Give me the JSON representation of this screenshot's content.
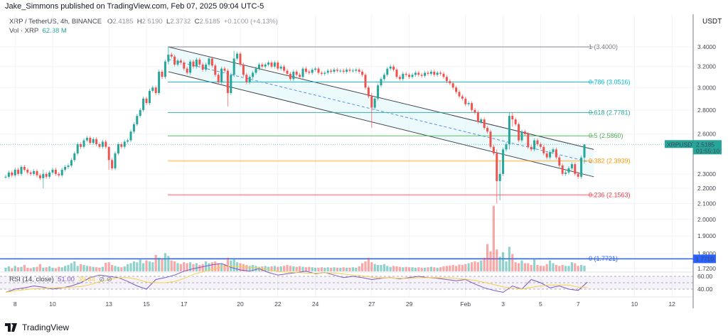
{
  "header": {
    "publisher": "Jake_Simmons published on TradingView.com, Feb 07, 2025 09:04 UTC-5",
    "symbol": "XRP / TetherUS, 4h, BINANCE",
    "o_label": "O",
    "o": "2.4185",
    "h_label": "H",
    "h": "2.5190",
    "l_label": "L",
    "l": "2.3732",
    "c_label": "C",
    "c": "2.5185",
    "change": "+0.1000 (+4.13%)",
    "vol_label": "Vol · XRP",
    "vol": "62.38 M",
    "currency": "USDT"
  },
  "rsi_legend": {
    "label": "RSI (14, close)",
    "value": "51.00",
    "ma_value": "39.34"
  },
  "footer": {
    "brand": "TradingView"
  },
  "colors": {
    "up": "#26a69a",
    "down": "#ef5350",
    "channel_fill": "#e0f7fa",
    "blue_line": "#2962ff",
    "rsi": "#7e57c2",
    "rsi_ma": "#f7d046"
  },
  "chart_data": {
    "type": "candlestick",
    "interval": "4h",
    "scale": "log",
    "grid": true,
    "price_ticks": [
      "3.4000",
      "3.2000",
      "3.0000",
      "2.8000",
      "2.6000",
      "2.3000",
      "2.2000",
      "2.1000",
      "2.0000",
      "1.9000",
      "1.8000",
      "1.7200"
    ],
    "time_ticks": [
      {
        "label": "8",
        "date": "2025-01-08"
      },
      {
        "label": "10",
        "date": "2025-01-10"
      },
      {
        "label": "13",
        "date": "2025-01-13"
      },
      {
        "label": "15",
        "date": "2025-01-15"
      },
      {
        "label": "17",
        "date": "2025-01-17"
      },
      {
        "label": "20",
        "date": "2025-01-20"
      },
      {
        "label": "22",
        "date": "2025-01-22"
      },
      {
        "label": "24",
        "date": "2025-01-24"
      },
      {
        "label": "27",
        "date": "2025-01-27"
      },
      {
        "label": "29",
        "date": "2025-01-29"
      },
      {
        "label": "Feb",
        "date": "2025-02-01"
      },
      {
        "label": "3",
        "date": "2025-02-03"
      },
      {
        "label": "5",
        "date": "2025-02-05"
      },
      {
        "label": "7",
        "date": "2025-02-07"
      },
      {
        "label": "10",
        "date": "2025-02-10"
      },
      {
        "label": "12",
        "date": "2025-02-12"
      }
    ],
    "closes": [
      2.28,
      2.31,
      2.29,
      2.33,
      2.3,
      2.35,
      2.33,
      2.31,
      2.3,
      2.32,
      2.29,
      2.27,
      2.3,
      2.28,
      2.31,
      2.33,
      2.3,
      2.29,
      2.33,
      2.35,
      2.36,
      2.4,
      2.45,
      2.52,
      2.5,
      2.55,
      2.57,
      2.53,
      2.56,
      2.52,
      2.5,
      2.54,
      2.5,
      2.4,
      2.34,
      2.45,
      2.52,
      2.5,
      2.54,
      2.55,
      2.62,
      2.68,
      2.75,
      2.8,
      2.9,
      2.86,
      2.97,
      3.0,
      2.95,
      3.15,
      3.1,
      3.25,
      3.32,
      3.3,
      3.22,
      3.26,
      3.24,
      3.18,
      3.14,
      3.25,
      3.2,
      3.27,
      3.22,
      3.17,
      3.22,
      3.28,
      3.21,
      3.12,
      3.05,
      3.18,
      3.16,
      2.95,
      3.12,
      3.28,
      3.33,
      3.22,
      3.12,
      3.05,
      3.1,
      3.14,
      3.18,
      3.22,
      3.2,
      3.22,
      3.24,
      3.2,
      3.24,
      3.18,
      3.2,
      3.16,
      3.13,
      3.08,
      3.15,
      3.12,
      3.1,
      3.18,
      3.15,
      3.14,
      3.17,
      3.18,
      3.14,
      3.13,
      3.14,
      3.16,
      3.15,
      3.17,
      3.16,
      3.16,
      3.15,
      3.17,
      3.16,
      3.16,
      3.17,
      3.15,
      3.12,
      3.0,
      2.92,
      2.82,
      2.9,
      3.02,
      3.08,
      3.12,
      3.18,
      3.2,
      3.17,
      3.1,
      3.08,
      3.13,
      3.12,
      3.1,
      3.12,
      3.14,
      3.12,
      3.11,
      3.14,
      3.13,
      3.15,
      3.12,
      3.14,
      3.13,
      3.1,
      3.06,
      3.04,
      3.0,
      2.96,
      2.92,
      2.9,
      2.85,
      2.86,
      2.8,
      2.78,
      2.7,
      2.72,
      2.65,
      2.62,
      2.5,
      2.45,
      2.25,
      2.3,
      2.48,
      2.52,
      2.75,
      2.72,
      2.68,
      2.55,
      2.62,
      2.6,
      2.5,
      2.48,
      2.55,
      2.52,
      2.5,
      2.45,
      2.42,
      2.46,
      2.48,
      2.42,
      2.36,
      2.3,
      2.31,
      2.34,
      2.37,
      2.3,
      2.28,
      2.4185,
      2.5185
    ],
    "wicks": {
      "12": [
        2.33,
        2.2
      ],
      "33": [
        2.5,
        2.33
      ],
      "52": [
        3.4,
        3.22
      ],
      "71": [
        3.18,
        2.83
      ],
      "73": [
        3.36,
        3.1
      ],
      "117": [
        2.95,
        2.65
      ],
      "157": [
        2.48,
        2.1
      ],
      "158": [
        2.4,
        2.12
      ],
      "161": [
        2.78,
        2.48
      ],
      "162": [
        2.78,
        2.66
      ],
      "185": [
        2.519,
        2.3732
      ]
    },
    "volume_m": [
      40,
      55,
      35,
      60,
      45,
      50,
      70,
      40,
      35,
      45,
      50,
      80,
      40,
      45,
      55,
      40,
      35,
      50,
      45,
      60,
      70,
      90,
      110,
      60,
      80,
      70,
      60,
      55,
      50,
      45,
      40,
      50,
      95,
      100,
      70,
      60,
      50,
      45,
      55,
      80,
      90,
      110,
      100,
      130,
      90,
      120,
      110,
      100,
      180,
      150,
      140,
      200,
      170,
      120,
      110,
      90,
      80,
      100,
      90,
      100,
      80,
      90,
      70,
      80,
      110,
      90,
      100,
      110,
      90,
      80,
      80,
      150,
      120,
      140,
      100,
      90,
      80,
      70,
      60,
      70,
      60,
      50,
      55,
      60,
      50,
      55,
      60,
      50,
      55,
      60,
      70,
      60,
      55,
      50,
      55,
      50,
      45,
      50,
      45,
      40,
      40,
      45,
      40,
      45,
      40,
      45,
      40,
      40,
      45,
      40,
      40,
      45,
      40,
      55,
      90,
      110,
      150,
      100,
      80,
      70,
      70,
      80,
      60,
      50,
      60,
      55,
      50,
      45,
      50,
      45,
      45,
      40,
      45,
      40,
      40,
      45,
      50,
      45,
      40,
      45,
      55,
      60,
      65,
      70,
      60,
      75,
      70,
      80,
      90,
      100,
      110,
      100,
      120,
      150,
      300,
      220,
      720,
      240,
      160,
      210,
      110,
      270,
      190,
      100,
      90,
      120,
      90,
      90,
      70,
      140,
      70,
      60,
      60,
      80,
      120,
      90,
      70,
      60,
      70,
      60,
      60,
      100,
      90,
      60,
      70,
      62.38
    ],
    "rsi": [
      35,
      40,
      42,
      45,
      43,
      40,
      42,
      45,
      50,
      58,
      62,
      60,
      58,
      52,
      45,
      40,
      55,
      58,
      62,
      68,
      72,
      75,
      78,
      80,
      74,
      70,
      68,
      72,
      66,
      62,
      64,
      66,
      68,
      64,
      66,
      62,
      58,
      60,
      58,
      55,
      57,
      58,
      56,
      58,
      60,
      58,
      57,
      55,
      53,
      55,
      48,
      42,
      38,
      35,
      45,
      40,
      55,
      50,
      42,
      45,
      40,
      38,
      51
    ],
    "rsi_ticks": [
      "60.00",
      "40.00"
    ],
    "channel": {
      "upper": [
        [
          52,
          3.4
        ],
        [
          188,
          2.48
        ]
      ],
      "lower": [
        [
          52,
          3.15
        ],
        [
          188,
          2.28
        ]
      ]
    },
    "fib": [
      {
        "label": "1 (3.4000)",
        "price": 3.4,
        "color": "#787b86"
      },
      {
        "label": "0.786 (3.0516)",
        "price": 3.0516,
        "color": "#00bcd4"
      },
      {
        "label": "0.618 (2.7781)",
        "price": 2.7781,
        "color": "#26a69a"
      },
      {
        "label": "0.5 (2.5860)",
        "price": 2.586,
        "color": "#4caf50"
      },
      {
        "label": "0.382 (2.3939)",
        "price": 2.3939,
        "color": "#ff9800"
      },
      {
        "label": "0.236 (2.1563)",
        "price": 2.1563,
        "color": "#f23645"
      },
      {
        "label": "0 (1.7721)",
        "price": 1.7721,
        "color": "#2962ff"
      }
    ],
    "last_price": {
      "symbol": "XRPUSDT",
      "price": "2.5185",
      "countdown": "01:55:10"
    },
    "horizontal_line": {
      "price": 1.771,
      "label": "1.7710"
    }
  }
}
